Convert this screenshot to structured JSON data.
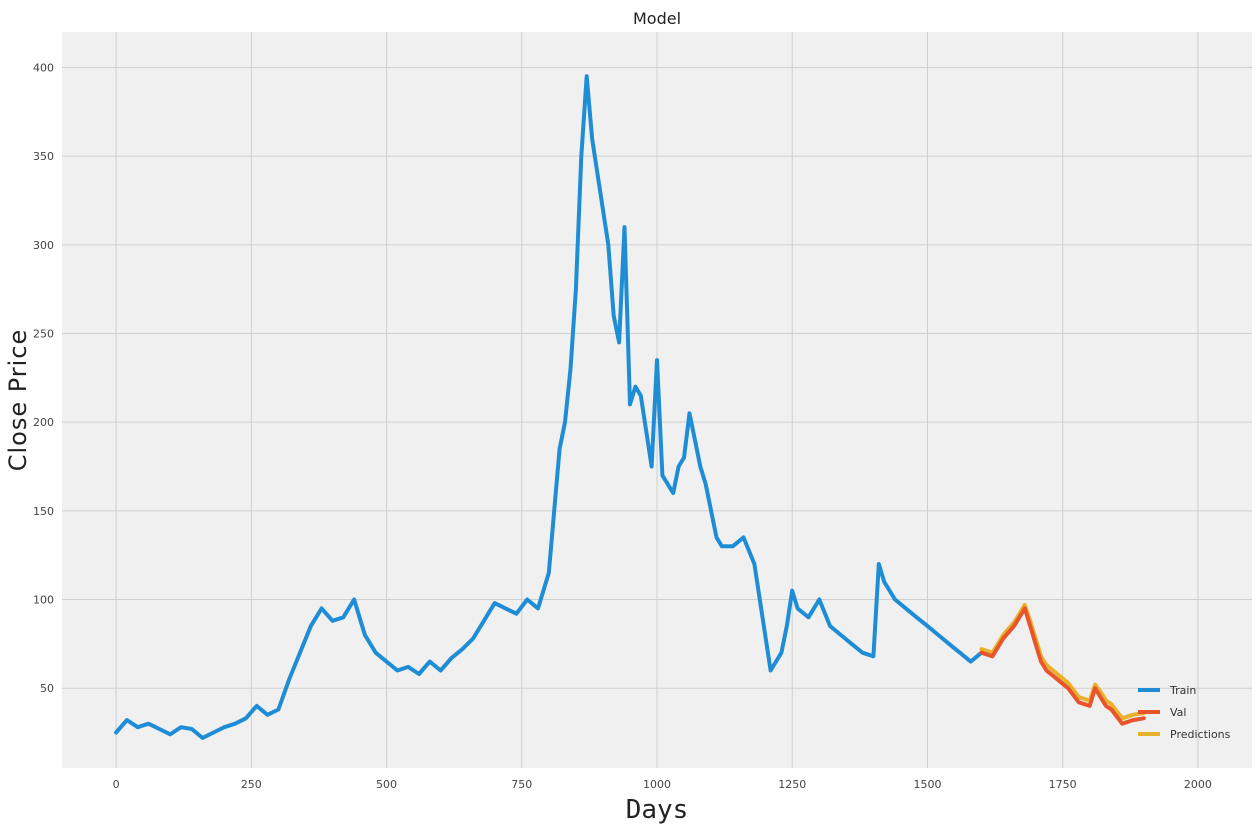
{
  "chart_data": {
    "type": "line",
    "title": "Model",
    "xlabel": "Days",
    "ylabel": "Close Price",
    "xlim": [
      -100,
      2100
    ],
    "ylim": [
      5,
      420
    ],
    "xticks": [
      0,
      250,
      500,
      750,
      1000,
      1250,
      1500,
      1750,
      2000
    ],
    "yticks": [
      50,
      100,
      150,
      200,
      250,
      300,
      350,
      400
    ],
    "xtick_labels": [
      "0",
      "250",
      "500",
      "750",
      "1000",
      "1250",
      "1500",
      "1750",
      "2000"
    ],
    "ytick_labels": [
      "50",
      "100",
      "150",
      "200",
      "250",
      "300",
      "350",
      "400"
    ],
    "grid": true,
    "legend_position": "lower-right",
    "series": [
      {
        "name": "Train",
        "color": "#1f8dd6",
        "x": [
          0,
          20,
          40,
          60,
          80,
          100,
          120,
          140,
          160,
          180,
          200,
          220,
          240,
          260,
          280,
          300,
          320,
          340,
          360,
          380,
          400,
          420,
          440,
          460,
          480,
          500,
          520,
          540,
          560,
          580,
          600,
          620,
          640,
          660,
          680,
          700,
          720,
          740,
          760,
          780,
          800,
          810,
          820,
          830,
          840,
          850,
          860,
          870,
          880,
          890,
          900,
          910,
          920,
          930,
          940,
          950,
          960,
          970,
          980,
          990,
          1000,
          1010,
          1020,
          1030,
          1040,
          1050,
          1060,
          1070,
          1080,
          1090,
          1100,
          1110,
          1120,
          1140,
          1160,
          1180,
          1200,
          1210,
          1220,
          1230,
          1240,
          1250,
          1260,
          1280,
          1300,
          1320,
          1340,
          1360,
          1380,
          1400,
          1410,
          1420,
          1440,
          1460,
          1480,
          1500,
          1520,
          1540,
          1560,
          1580,
          1600
        ],
        "y": [
          25,
          32,
          28,
          30,
          27,
          24,
          28,
          27,
          22,
          25,
          28,
          30,
          33,
          40,
          35,
          38,
          55,
          70,
          85,
          95,
          88,
          90,
          100,
          80,
          70,
          65,
          60,
          62,
          58,
          65,
          60,
          67,
          72,
          78,
          88,
          98,
          95,
          92,
          100,
          95,
          115,
          150,
          185,
          200,
          230,
          275,
          350,
          395,
          360,
          340,
          320,
          300,
          260,
          245,
          310,
          210,
          220,
          215,
          195,
          175,
          235,
          170,
          165,
          160,
          175,
          180,
          205,
          190,
          175,
          165,
          150,
          135,
          130,
          130,
          135,
          120,
          80,
          60,
          65,
          70,
          85,
          105,
          95,
          90,
          100,
          85,
          80,
          75,
          70,
          68,
          120,
          110,
          100,
          95,
          90,
          85,
          80,
          75,
          70,
          65,
          70
        ]
      },
      {
        "name": "Val",
        "color": "#e8542c",
        "x": [
          1600,
          1620,
          1640,
          1660,
          1680,
          1690,
          1700,
          1710,
          1720,
          1740,
          1760,
          1780,
          1800,
          1810,
          1820,
          1830,
          1840,
          1860,
          1880,
          1900
        ],
        "y": [
          70,
          68,
          78,
          85,
          95,
          85,
          75,
          65,
          60,
          55,
          50,
          42,
          40,
          50,
          45,
          40,
          38,
          30,
          32,
          33
        ]
      },
      {
        "name": "Predictions",
        "color": "#e8b22a",
        "x": [
          1600,
          1620,
          1640,
          1660,
          1680,
          1690,
          1700,
          1710,
          1720,
          1740,
          1760,
          1780,
          1800,
          1810,
          1820,
          1830,
          1840,
          1860,
          1880,
          1900
        ],
        "y": [
          72,
          70,
          80,
          87,
          97,
          88,
          78,
          68,
          63,
          58,
          53,
          45,
          43,
          52,
          48,
          43,
          41,
          33,
          35,
          36
        ]
      }
    ]
  }
}
